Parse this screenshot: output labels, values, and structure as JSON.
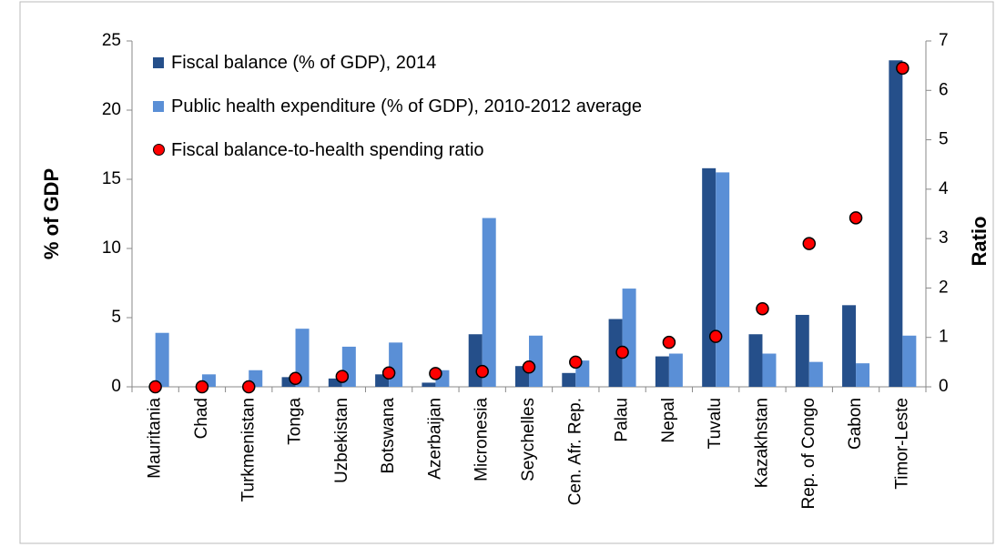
{
  "chart_data": {
    "type": "bar",
    "categories": [
      "Mauritania",
      "Chad",
      "Turkmenistan",
      "Tonga",
      "Uzbekistan",
      "Botswana",
      "Azerbaijan",
      "Micronesia",
      "Seychelles",
      "Cen. Afr. Rep.",
      "Palau",
      "Nepal",
      "Tuvalu",
      "Kazakhstan",
      "Rep. of Congo",
      "Gabon",
      "Timor-Leste"
    ],
    "series": [
      {
        "name": "Fiscal balance (% of GDP), 2014",
        "color": "#254f8a",
        "values": [
          0,
          0,
          0,
          0.7,
          0.6,
          0.9,
          0.3,
          3.8,
          1.5,
          1.0,
          4.9,
          2.2,
          15.8,
          3.8,
          5.2,
          5.9,
          23.6
        ]
      },
      {
        "name": "Public health expenditure (% of GDP), 2010-2012 average",
        "color": "#5a8fd6",
        "values": [
          3.9,
          0.9,
          1.2,
          4.2,
          2.9,
          3.2,
          1.2,
          12.2,
          3.7,
          1.9,
          7.1,
          2.4,
          15.5,
          2.4,
          1.8,
          1.7,
          3.7
        ]
      },
      {
        "name": "Fiscal balance-to-health spending ratio",
        "color": "#ff0000",
        "type": "scatter",
        "axis": "y2",
        "values": [
          0,
          0,
          0,
          0.17,
          0.21,
          0.28,
          0.27,
          0.31,
          0.4,
          0.5,
          0.7,
          0.9,
          1.02,
          1.58,
          2.9,
          3.42,
          6.45
        ]
      }
    ],
    "ylabel": "% of GDP",
    "y2label": "Ratio",
    "ylim": [
      0,
      25
    ],
    "yticks": [
      0,
      5,
      10,
      15,
      20,
      25
    ],
    "y2lim": [
      0,
      7
    ],
    "y2ticks": [
      0,
      1,
      2,
      3,
      4,
      5,
      6,
      7
    ]
  }
}
